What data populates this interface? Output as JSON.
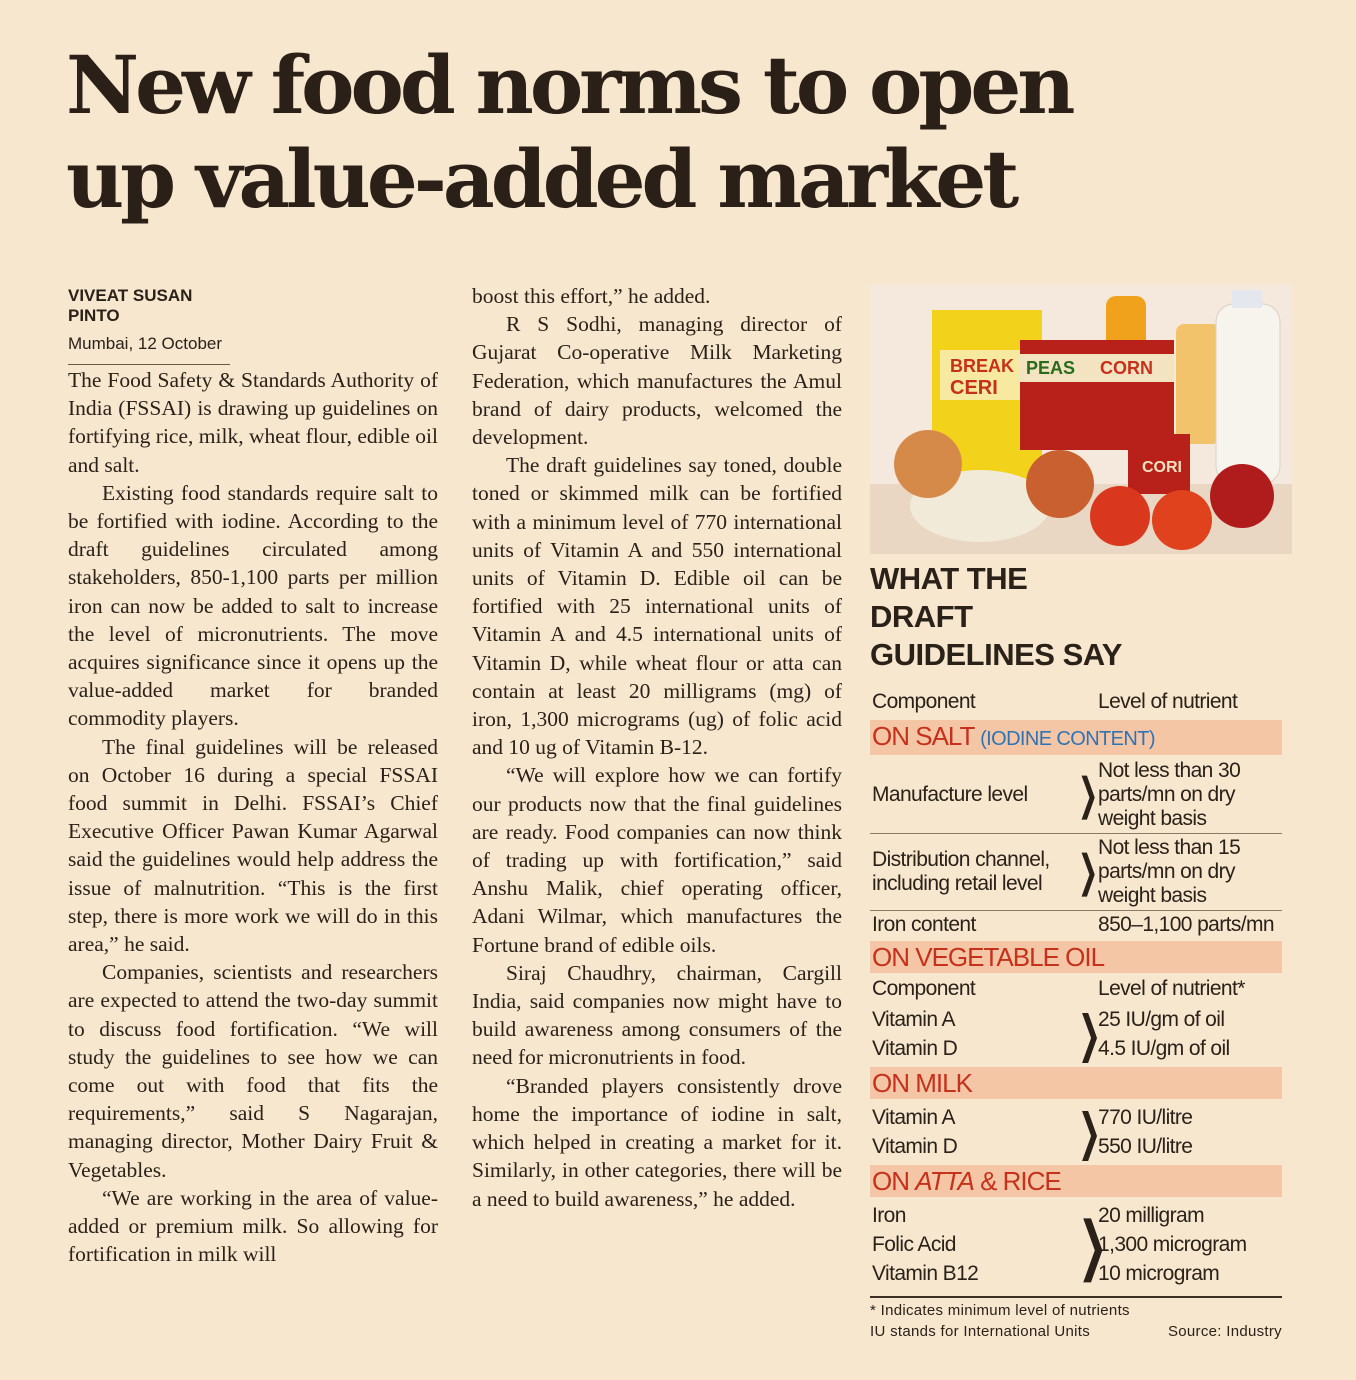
{
  "headline": "New food norms to open up value-added market",
  "byline": {
    "author": "VIVEAT SUSAN PINTO",
    "dateline": "Mumbai, 12 October"
  },
  "column1": [
    "The Food Safety & Standards Authority of India (FSSAI) is drawing up guidelines on fortifying rice, milk, wheat flour, edible oil and salt.",
    "Existing food standards require salt to be fortified with iodine. According to the draft guidelines circulated among stakeholders, 850-1,100 parts per million iron can now be added to salt to increase the level of micronutrients. The move acquires significance since it opens up the value-added market for branded commodity players.",
    "The final guidelines will be released on October 16 during a special FSSAI food summit in Delhi. FSSAI’s Chief Executive Officer Pawan Kumar Agarwal said the guidelines would help address the issue of malnutrition. “This is the first step, there is more work we will do in this area,” he said.",
    "Companies, scientists and researchers are expected to attend the two-day summit to discuss food fortification. “We will study the guidelines to see how we can come out with food that fits the requirements,” said S Nagarajan, managing director, Mother Dairy Fruit & Vegetables.",
    "“We are working in the area of value-added or premium milk. So allowing for fortification in milk will"
  ],
  "column2": [
    "boost this effort,” he added.",
    "R S Sodhi, managing director of Gujarat Co-operative Milk Marketing Federation, which manufactures the Amul brand of dairy products, welcomed the development.",
    "The draft guidelines say toned, double toned or skimmed milk can be fortified with a minimum level of 770 international units of Vitamin A and 550 international units of Vitamin D. Edible oil can be fortified with 25 international units of Vitamin A and 4.5 international units of Vitamin D, while wheat flour or atta can contain at least 20 milligrams (mg) of iron, 1,300 micrograms (ug) of folic acid and 10 ug of Vitamin B-12.",
    "“We will explore how we can fortify our products now that the final guidelines are ready. Food companies can now think of trading up with fortification,” said Anshu Malik, chief operating officer, Adani Wilmar, which manufactures the Fortune brand of edible oils.",
    "Siraj Chaudhry, chairman, Cargill India, said companies now might have to build awareness among consumers of the need for micronutrients in food.",
    "“Branded players consistently drove home the importance of iodine in salt, which helped in creating a market for it. Similarly, in other categories, there will be a need to build awareness,” he added."
  ],
  "photo": {
    "labels": [
      "BREAK",
      "CERI",
      "PEAS",
      "CORN",
      "CORI"
    ]
  },
  "sidebar": {
    "title": "WHAT THE DRAFT GUIDELINES SAY",
    "header": [
      "Component",
      "Level of nutrient"
    ],
    "salt": {
      "heading": "ON SALT",
      "note": "(IODINE CONTENT)",
      "rows": [
        [
          "Manufacture level",
          "Not less than 30 parts/mn on dry weight basis"
        ],
        [
          "Distribution channel, including retail level",
          "Not less than 15 parts/mn on dry weight basis"
        ],
        [
          "Iron content",
          "850–1,100 parts/mn"
        ]
      ]
    },
    "oil": {
      "heading": "ON VEGETABLE OIL",
      "header": [
        "Component",
        "Level of nutrient*"
      ],
      "components": [
        "Vitamin A",
        "Vitamin D"
      ],
      "levels": [
        "25 IU/gm of oil",
        "4.5 IU/gm of oil"
      ]
    },
    "milk": {
      "heading": "ON MILK",
      "components": [
        "Vitamin A",
        "Vitamin D"
      ],
      "levels": [
        "770 IU/litre",
        "550 IU/litre"
      ]
    },
    "atta": {
      "heading": "ON",
      "heading_italic": "ATTA",
      "heading_rest": "& RICE",
      "components": [
        "Iron",
        "Folic Acid",
        "Vitamin B12"
      ],
      "levels": [
        "20 milligram",
        "1,300 microgram",
        "10 microgram"
      ]
    },
    "footnotes": [
      "* Indicates minimum level of nutrients",
      "IU stands for International Units"
    ],
    "source": "Source: Industry"
  }
}
